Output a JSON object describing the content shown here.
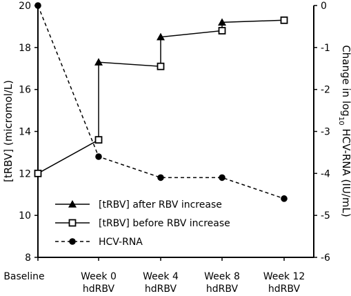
{
  "chart_data": {
    "type": "line",
    "categories": [
      "Baseline",
      "Week 0\nhdRBV",
      "Week 4\nhdRBV",
      "Week 8\nhdRBV",
      "Week 12\nhdRBV"
    ],
    "left_axis": {
      "label": "[tRBV] (micromol/L)",
      "ylim": [
        8,
        20
      ],
      "ticks": [
        "8",
        "10",
        "12",
        "14",
        "16",
        "18",
        "20"
      ]
    },
    "right_axis": {
      "label_pre": "Change in log",
      "label_sub": "10",
      "label_post": " HCV-RNA (IU/mL)",
      "ylim": [
        -6,
        0
      ],
      "ticks": [
        "0",
        "-1",
        "-2",
        "-3",
        "-4",
        "-5",
        "-6"
      ]
    },
    "series": [
      {
        "name": "[tRBV] after RBV increase",
        "axis": "left",
        "marker": "triangle",
        "line": "solid",
        "values": [
          null,
          17.3,
          18.5,
          19.2,
          19.3
        ]
      },
      {
        "name": "[tRBV] before RBV increase",
        "axis": "left",
        "marker": "square-open",
        "line": "solid",
        "values": [
          12.0,
          13.6,
          17.1,
          18.8,
          19.3
        ]
      },
      {
        "name": "HCV-RNA",
        "axis": "right",
        "marker": "circle",
        "line": "dashed",
        "values": [
          0,
          -3.6,
          -4.1,
          -4.1,
          -4.6
        ]
      }
    ],
    "legend": "bottom-left",
    "grid": false
  }
}
